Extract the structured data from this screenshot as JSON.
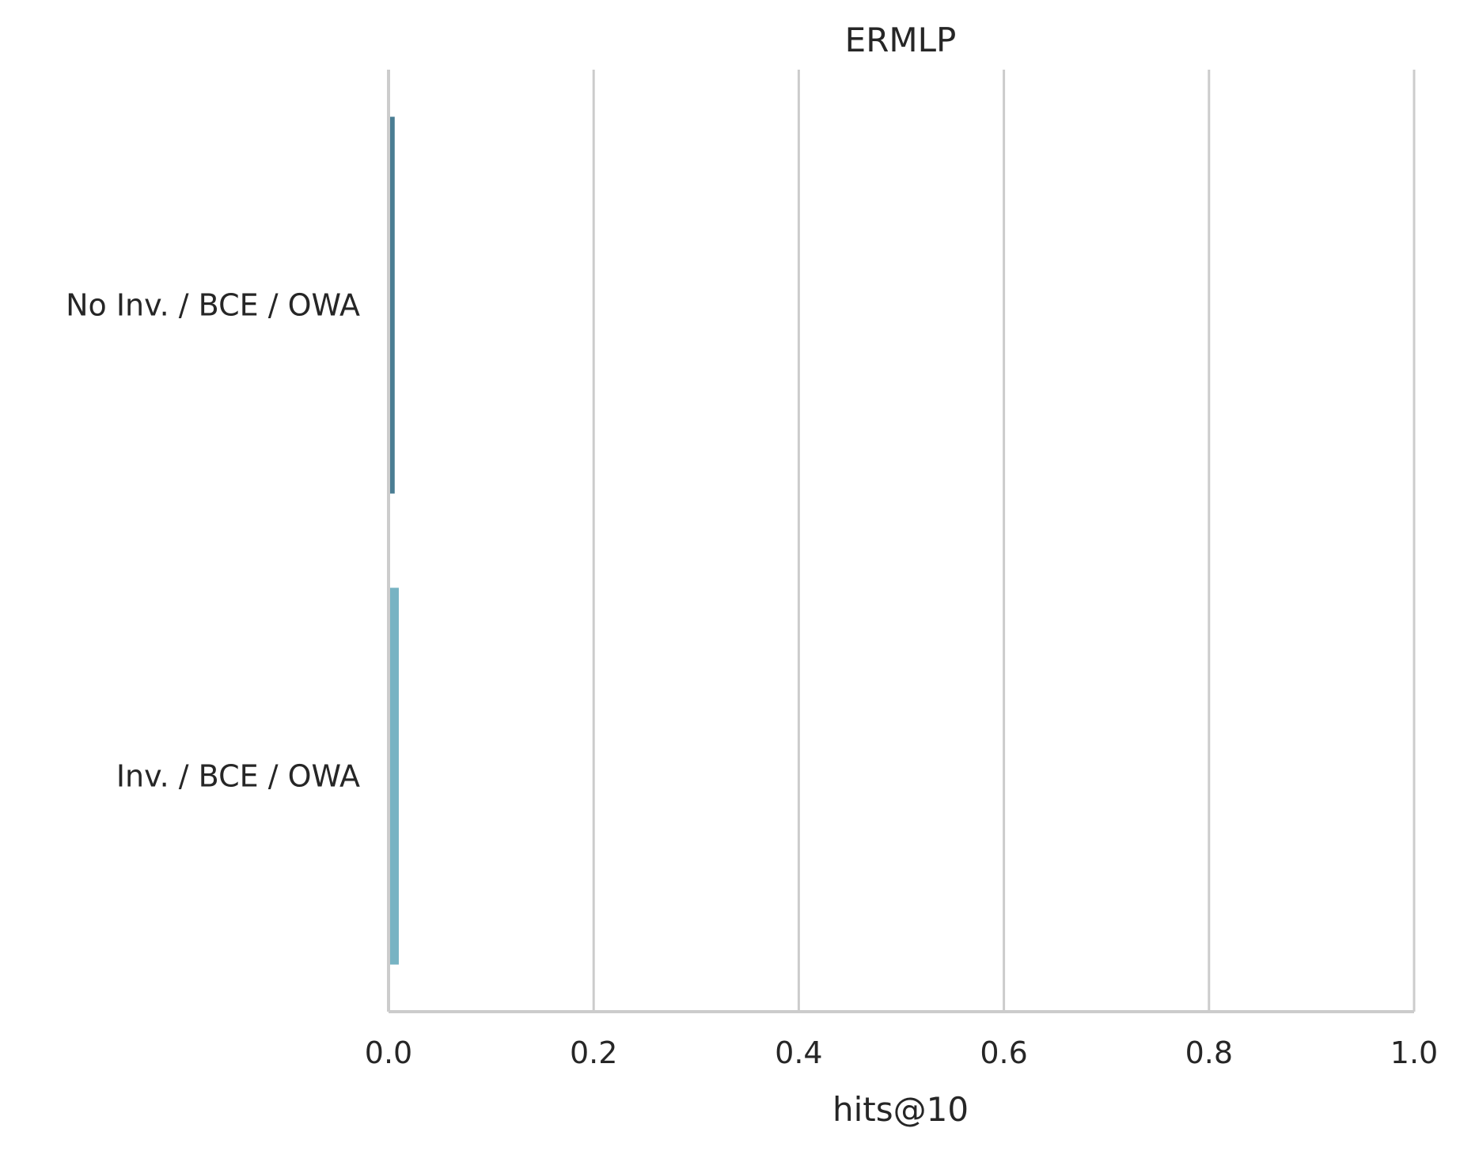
{
  "chart_data": {
    "type": "bar",
    "orientation": "horizontal",
    "title": "ERMLP",
    "xlabel": "hits@10",
    "ylabel": "",
    "xlim": [
      0,
      1.0
    ],
    "xticks": [
      "0.0",
      "0.2",
      "0.4",
      "0.6",
      "0.8",
      "1.0"
    ],
    "categories": [
      "No Inv. / BCE / OWA",
      "Inv. / BCE / OWA"
    ],
    "values": [
      0.006,
      0.01
    ],
    "colors": [
      "#4a7d93",
      "#77b3c3"
    ],
    "grid": "vertical",
    "legend": "none"
  }
}
